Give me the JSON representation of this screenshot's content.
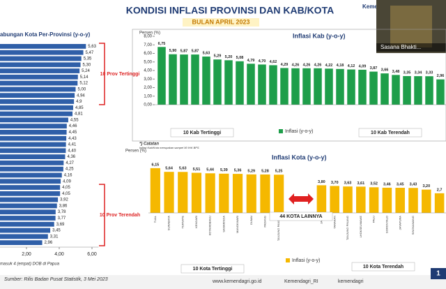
{
  "header": {
    "title": "KONDISI INFLASI PROVINSI DAN KAB/KOTA",
    "subtitle": "BULAN APRIL 2023",
    "top_right": "Kemen"
  },
  "video": {
    "label": "Sasana Bhakti..."
  },
  "chart_data": [
    {
      "type": "barh",
      "title": "abungan Kota Per-Provinsi (y-o-y)",
      "color": "#2f5fa8",
      "values": [
        5.63,
        5.47,
        5.35,
        5.3,
        5.24,
        5.14,
        5.12,
        5.0,
        4.94,
        4.9,
        4.85,
        4.81,
        4.55,
        4.46,
        4.45,
        4.43,
        4.41,
        4.4,
        4.36,
        4.27,
        4.25,
        4.16,
        4.09,
        4.05,
        4.05,
        3.92,
        3.86,
        3.78,
        3.77,
        3.69,
        3.45,
        3.31,
        2.96
      ],
      "value_labels": [
        "5,63",
        "5,47",
        "5,35",
        "5,30",
        "5,24",
        "5,14",
        "5,12",
        "5,00",
        "4,94",
        "4,9",
        "4,85",
        "4,81",
        "4,55",
        "4,46",
        "4,45",
        "4,43",
        "4,41",
        "4,40",
        "4,36",
        "4,27",
        "4,25",
        "4,16",
        "4,09",
        "4,05",
        "4,05",
        "3,92",
        "3,86",
        "3,78",
        "3,77",
        "3,69",
        "3,45",
        "3,31",
        "2,96"
      ],
      "xlim": [
        0,
        6.4
      ],
      "xticks": [
        {
          "value": 2,
          "label": "2,00"
        },
        {
          "value": 4,
          "label": "4,00"
        },
        {
          "value": 6,
          "label": "6,00"
        }
      ],
      "annotations": [
        "10 Prov Tertinggi",
        "10 Prov Terendah"
      ],
      "note": "masuk 4 (empat) DOB di Papua"
    },
    {
      "type": "bar",
      "title": "Inflasi Kab (y-o-y)",
      "y_label": "Persen (%)",
      "categories": [
        null,
        null,
        null,
        null,
        null,
        null,
        null,
        null,
        null,
        null,
        null,
        null,
        null,
        null,
        null,
        null,
        null,
        null,
        null,
        null,
        null,
        null,
        null,
        null,
        null,
        null
      ],
      "series": [
        {
          "name": "Inflasi (y-o-y)",
          "color": "#1e9e4a",
          "values": [
            6.75,
            5.9,
            5.87,
            5.87,
            5.63,
            5.29,
            5.2,
            5.08,
            4.79,
            4.7,
            4.62,
            4.29,
            4.26,
            4.26,
            4.26,
            4.22,
            4.18,
            4.12,
            4.09,
            3.87,
            3.66,
            3.48,
            3.35,
            3.34,
            3.33,
            2.96
          ],
          "value_labels": [
            "6,75",
            "5,90",
            "5,87",
            "5,87",
            "5,63",
            "5,29",
            "5,20",
            "5,08",
            "4,79",
            "4,70",
            "4,62",
            "4,29",
            "4,26",
            "4,26",
            "4,26",
            "4,22",
            "4,18",
            "4,12",
            "4,09",
            "3,87",
            "3,66",
            "3,48",
            "3,35",
            "3,34",
            "3,33",
            "2,96"
          ]
        }
      ],
      "ylim": [
        0,
        8
      ],
      "yticks": [
        {
          "value": 0,
          "label": "0,00"
        },
        {
          "value": 1,
          "label": "1,00"
        },
        {
          "value": 2,
          "label": "2,00"
        },
        {
          "value": 3,
          "label": "3,00"
        },
        {
          "value": 4,
          "label": "4,00"
        },
        {
          "value": 5,
          "label": "5,00"
        },
        {
          "value": 6,
          "label": "6,00"
        },
        {
          "value": 7,
          "label": "7,00"
        },
        {
          "value": 8,
          "label": "8,00"
        }
      ],
      "annotations": [
        "10 Kab Tertinggi",
        "10 Kab Terendah"
      ]
    },
    {
      "type": "bar",
      "title": "Inflasi Kota (y-o-y)",
      "y_label": "Persen (%)",
      "note_title": "*) Catatan",
      "note": "Inflasi Kab/Kota merupakan sampel 90 IHK BPS",
      "categories": [
        "TUAL",
        "SURABAYA",
        "TERNATE",
        "KENDARI",
        "KOTAMOBAGU",
        "SAMARINDA",
        "MANOKWARI",
        "DUMAI",
        "PADANG",
        "TANJUNG PANDAN",
        "JAMBI",
        "TARAKAN",
        "TANJUNG PINANG",
        "LHOKSEUMAWE",
        "PALU",
        "GORONTALO",
        "JAYAPURA",
        "SINGKAWANG",
        null,
        null
      ],
      "series": [
        {
          "name": "Inflasi (y-o-y)",
          "color": "#f5b800",
          "values": [
            6.15,
            5.64,
            5.63,
            5.51,
            5.44,
            5.39,
            5.36,
            5.29,
            5.28,
            5.25,
            3.8,
            3.7,
            3.63,
            3.61,
            3.52,
            3.46,
            3.45,
            3.43,
            3.2,
            2.7
          ],
          "value_labels": [
            "6,15",
            "5,64",
            "5,63",
            "5,51",
            "5,44",
            "5,39",
            "5,36",
            "5,29",
            "5,28",
            "5,25",
            "3,80",
            "3,70",
            "3,63",
            "3,61",
            "3,52",
            "3,46",
            "3,45",
            "3,43",
            "3,20",
            "2,7"
          ]
        }
      ],
      "ylim": [
        0,
        7
      ],
      "annotations": [
        "10 Kota Tertinggi",
        "44 KOTA LAINNYA",
        "10 Kota Terendah"
      ]
    }
  ],
  "footer": {
    "source": "Sumber: Rilis Badan Pusat Statistik, 3 Mei 2023",
    "website": "www.kemendagri.go.id",
    "twitter": "Kemendagri_RI",
    "instagram": "kemendagri",
    "page": "1"
  }
}
